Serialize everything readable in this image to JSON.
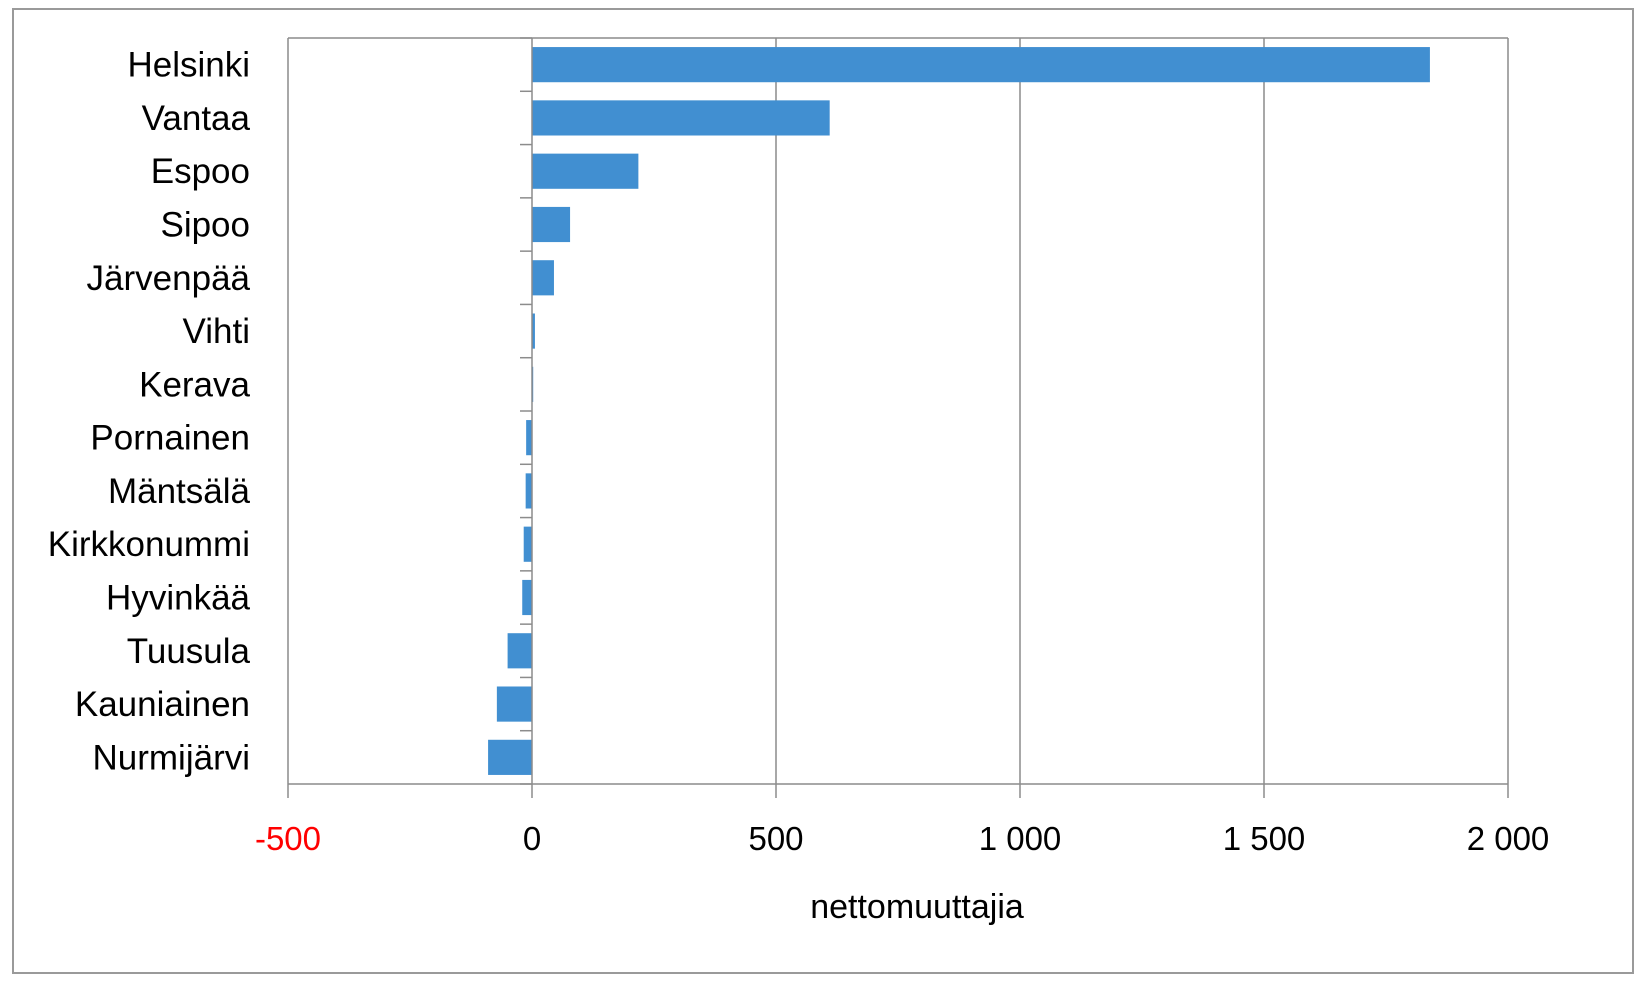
{
  "chart_data": {
    "type": "bar",
    "orientation": "horizontal",
    "categories": [
      "Helsinki",
      "Vantaa",
      "Espoo",
      "Sipoo",
      "Järvenpää",
      "Vihti",
      "Kerava",
      "Pornainen",
      "Mäntsälä",
      "Kirkkonummi",
      "Hyvinkää",
      "Tuusula",
      "Kauniainen",
      "Nurmijärvi"
    ],
    "values": [
      1840,
      610,
      218,
      78,
      45,
      6,
      2,
      -12,
      -13,
      -17,
      -20,
      -50,
      -72,
      -90
    ],
    "title": "",
    "xlabel": "nettomuuttajia",
    "ylabel": "",
    "xlim": [
      -500,
      2000
    ],
    "x_ticks": [
      -500,
      0,
      500,
      1000,
      1500,
      2000
    ],
    "x_tick_labels": [
      "-500",
      "0",
      "500",
      "1 000",
      "1 500",
      "2 000"
    ],
    "grid": "vertical",
    "legend": "none",
    "colors": {
      "bar": "#418fd1",
      "negative_tick": "#ff0000",
      "gridline": "#8c8c8c",
      "text": "#000000"
    }
  }
}
